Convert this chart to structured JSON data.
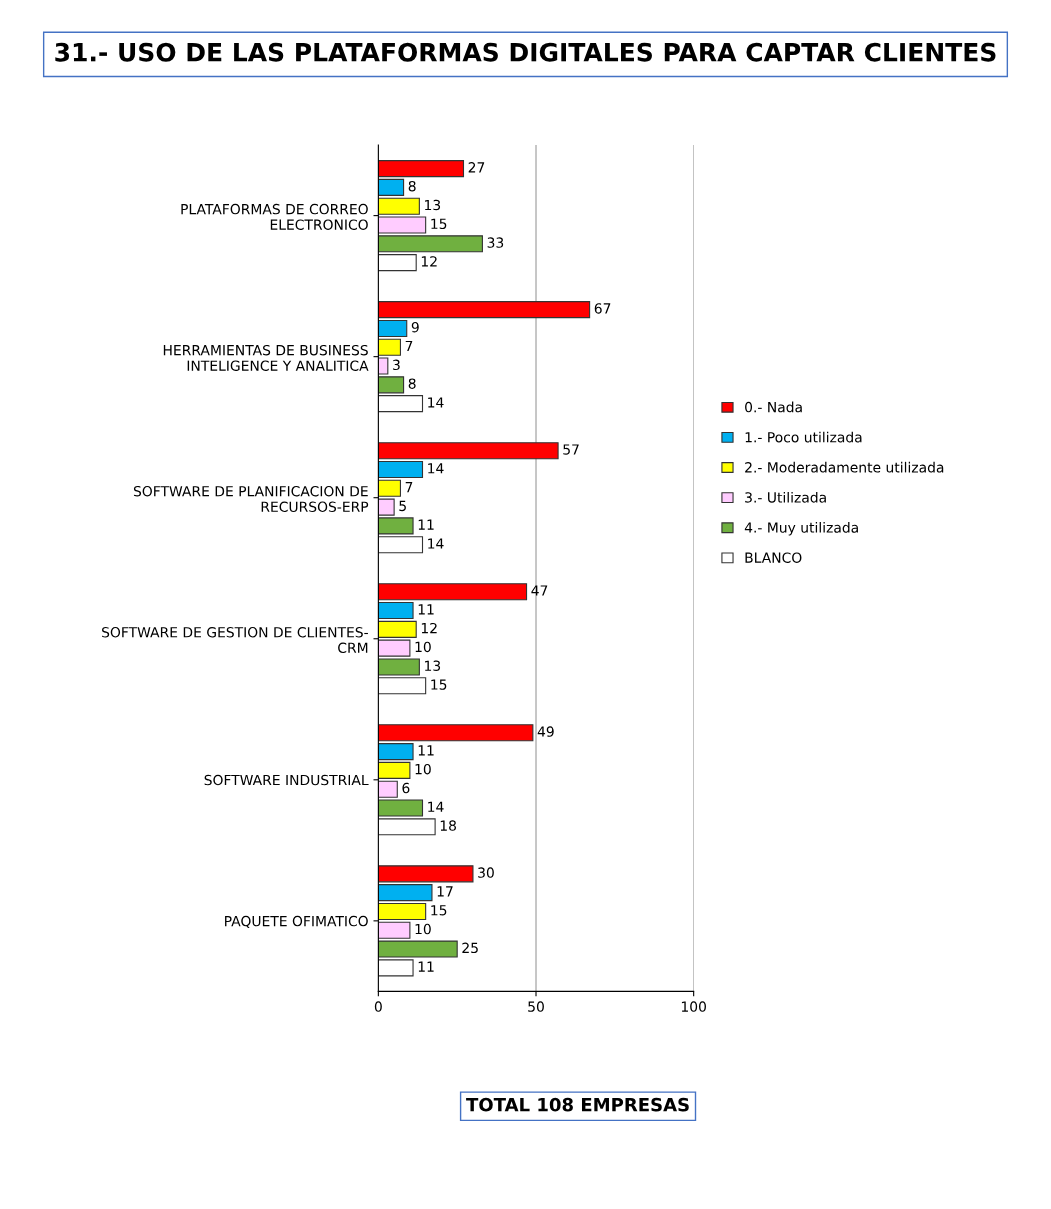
{
  "chart_data": {
    "type": "bar",
    "orientation": "horizontal",
    "title": "31.- USO DE LAS PLATAFORMAS DIGITALES PARA CAPTAR CLIENTES",
    "categories": [
      "PLATAFORMAS DE CORREO\nELECTRONICO",
      "HERRAMIENTAS DE BUSINESS\nINTELIGENCE Y ANALITICA",
      "SOFTWARE DE PLANIFICACION DE\nRECURSOS-ERP",
      "SOFTWARE DE GESTION DE CLIENTES-\nCRM",
      "SOFTWARE INDUSTRIAL",
      "PAQUETE OFIMATICO"
    ],
    "series": [
      {
        "name": "0.- Nada",
        "color": "#ff0000",
        "values": [
          27,
          67,
          57,
          47,
          49,
          30
        ]
      },
      {
        "name": "1.- Poco utilizada",
        "color": "#00b0f0",
        "values": [
          8,
          9,
          14,
          11,
          11,
          17
        ]
      },
      {
        "name": "2.- Moderadamente utilizada",
        "color": "#ffff00",
        "values": [
          13,
          7,
          7,
          12,
          10,
          15
        ]
      },
      {
        "name": "3.- Utilizada",
        "color": "#ffccff",
        "values": [
          15,
          3,
          5,
          10,
          6,
          10
        ]
      },
      {
        "name": "4.- Muy utilizada",
        "color": "#70b040",
        "values": [
          33,
          8,
          11,
          13,
          14,
          25
        ]
      },
      {
        "name": "BLANCO",
        "color": "#ffffff",
        "values": [
          12,
          14,
          14,
          15,
          18,
          11
        ]
      }
    ],
    "xlim": [
      0,
      100
    ],
    "xticks": [
      0,
      50,
      100
    ],
    "grid": "x",
    "legend": "right",
    "data_labels": true,
    "annotations": [
      "TOTAL 108 EMPRESAS"
    ]
  }
}
